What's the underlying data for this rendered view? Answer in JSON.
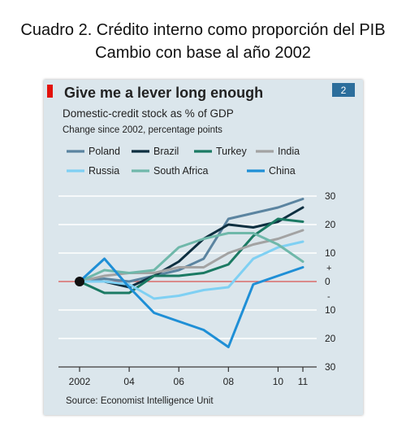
{
  "caption": {
    "title": "Cuadro 2. Crédito interno como proporción del PIB",
    "subtitle": "Cambio con base al año 2002"
  },
  "chart_number": "2",
  "colors": {
    "panel_background": "#dbe6ec",
    "accent_red": "#e3120b",
    "zero_line": "#d9534f",
    "grid": "#ffffff",
    "text": "#222222"
  },
  "chart_data": {
    "type": "line",
    "title": "Give me a lever long enough",
    "subtitle": "Domestic-credit stock as % of GDP",
    "subtitle2": "Change since 2002, percentage points",
    "source": "Source: Economist Intelligence Unit",
    "x_ticks": [
      "2002",
      "04",
      "06",
      "08",
      "10",
      "11"
    ],
    "x_tick_values": [
      2002,
      2004,
      2006,
      2008,
      2010,
      2011
    ],
    "xlim": [
      2002,
      2011
    ],
    "ylim": [
      -30,
      30
    ],
    "y_ticks": [
      {
        "value": 30,
        "label": "30"
      },
      {
        "value": 20,
        "label": "20"
      },
      {
        "value": 10,
        "label": "10"
      },
      {
        "value": 0,
        "label": "0"
      },
      {
        "value": -10,
        "label": "10"
      },
      {
        "value": -20,
        "label": "20"
      },
      {
        "value": -30,
        "label": "30"
      }
    ],
    "y_sign_plus": "+",
    "y_sign_minus": "-",
    "grid": true,
    "legend_position": "top",
    "series": [
      {
        "name": "Poland",
        "color": "#5b84a0",
        "x": [
          2002,
          2003,
          2004,
          2005,
          2006,
          2007,
          2008,
          2009,
          2010,
          2011
        ],
        "values": [
          0,
          1,
          0,
          2,
          4,
          8,
          22,
          24,
          26,
          29
        ]
      },
      {
        "name": "Brazil",
        "color": "#0d2f40",
        "x": [
          2002,
          2003,
          2004,
          2005,
          2006,
          2007,
          2008,
          2009,
          2010,
          2011
        ],
        "values": [
          0,
          0,
          -2,
          2,
          7,
          15,
          20,
          19,
          21,
          26
        ]
      },
      {
        "name": "Turkey",
        "color": "#1b7a63",
        "x": [
          2002,
          2003,
          2004,
          2005,
          2006,
          2007,
          2008,
          2009,
          2010,
          2011
        ],
        "values": [
          0,
          -4,
          -4,
          2,
          2,
          3,
          6,
          16,
          22,
          21
        ]
      },
      {
        "name": "India",
        "color": "#a3a3a3",
        "x": [
          2002,
          2003,
          2004,
          2005,
          2006,
          2007,
          2008,
          2009,
          2010,
          2011
        ],
        "values": [
          0,
          2,
          3,
          3,
          5,
          5,
          10,
          13,
          15,
          18
        ]
      },
      {
        "name": "Russia",
        "color": "#7fd0f3",
        "x": [
          2002,
          2003,
          2004,
          2005,
          2006,
          2007,
          2008,
          2009,
          2010,
          2011
        ],
        "values": [
          0,
          0,
          -1,
          -6,
          -5,
          -3,
          -2,
          8,
          12,
          14
        ]
      },
      {
        "name": "South Africa",
        "color": "#6fb8aa",
        "x": [
          2002,
          2003,
          2004,
          2005,
          2006,
          2007,
          2008,
          2009,
          2010,
          2011
        ],
        "values": [
          0,
          4,
          3,
          4,
          12,
          15,
          17,
          17,
          13,
          7
        ]
      },
      {
        "name": "China",
        "color": "#1f8fd6",
        "x": [
          2002,
          2003,
          2004,
          2005,
          2006,
          2007,
          2008,
          2009,
          2010,
          2011
        ],
        "values": [
          0,
          8,
          -2,
          -11,
          -14,
          -17,
          -23,
          -1,
          2,
          5
        ]
      }
    ]
  }
}
